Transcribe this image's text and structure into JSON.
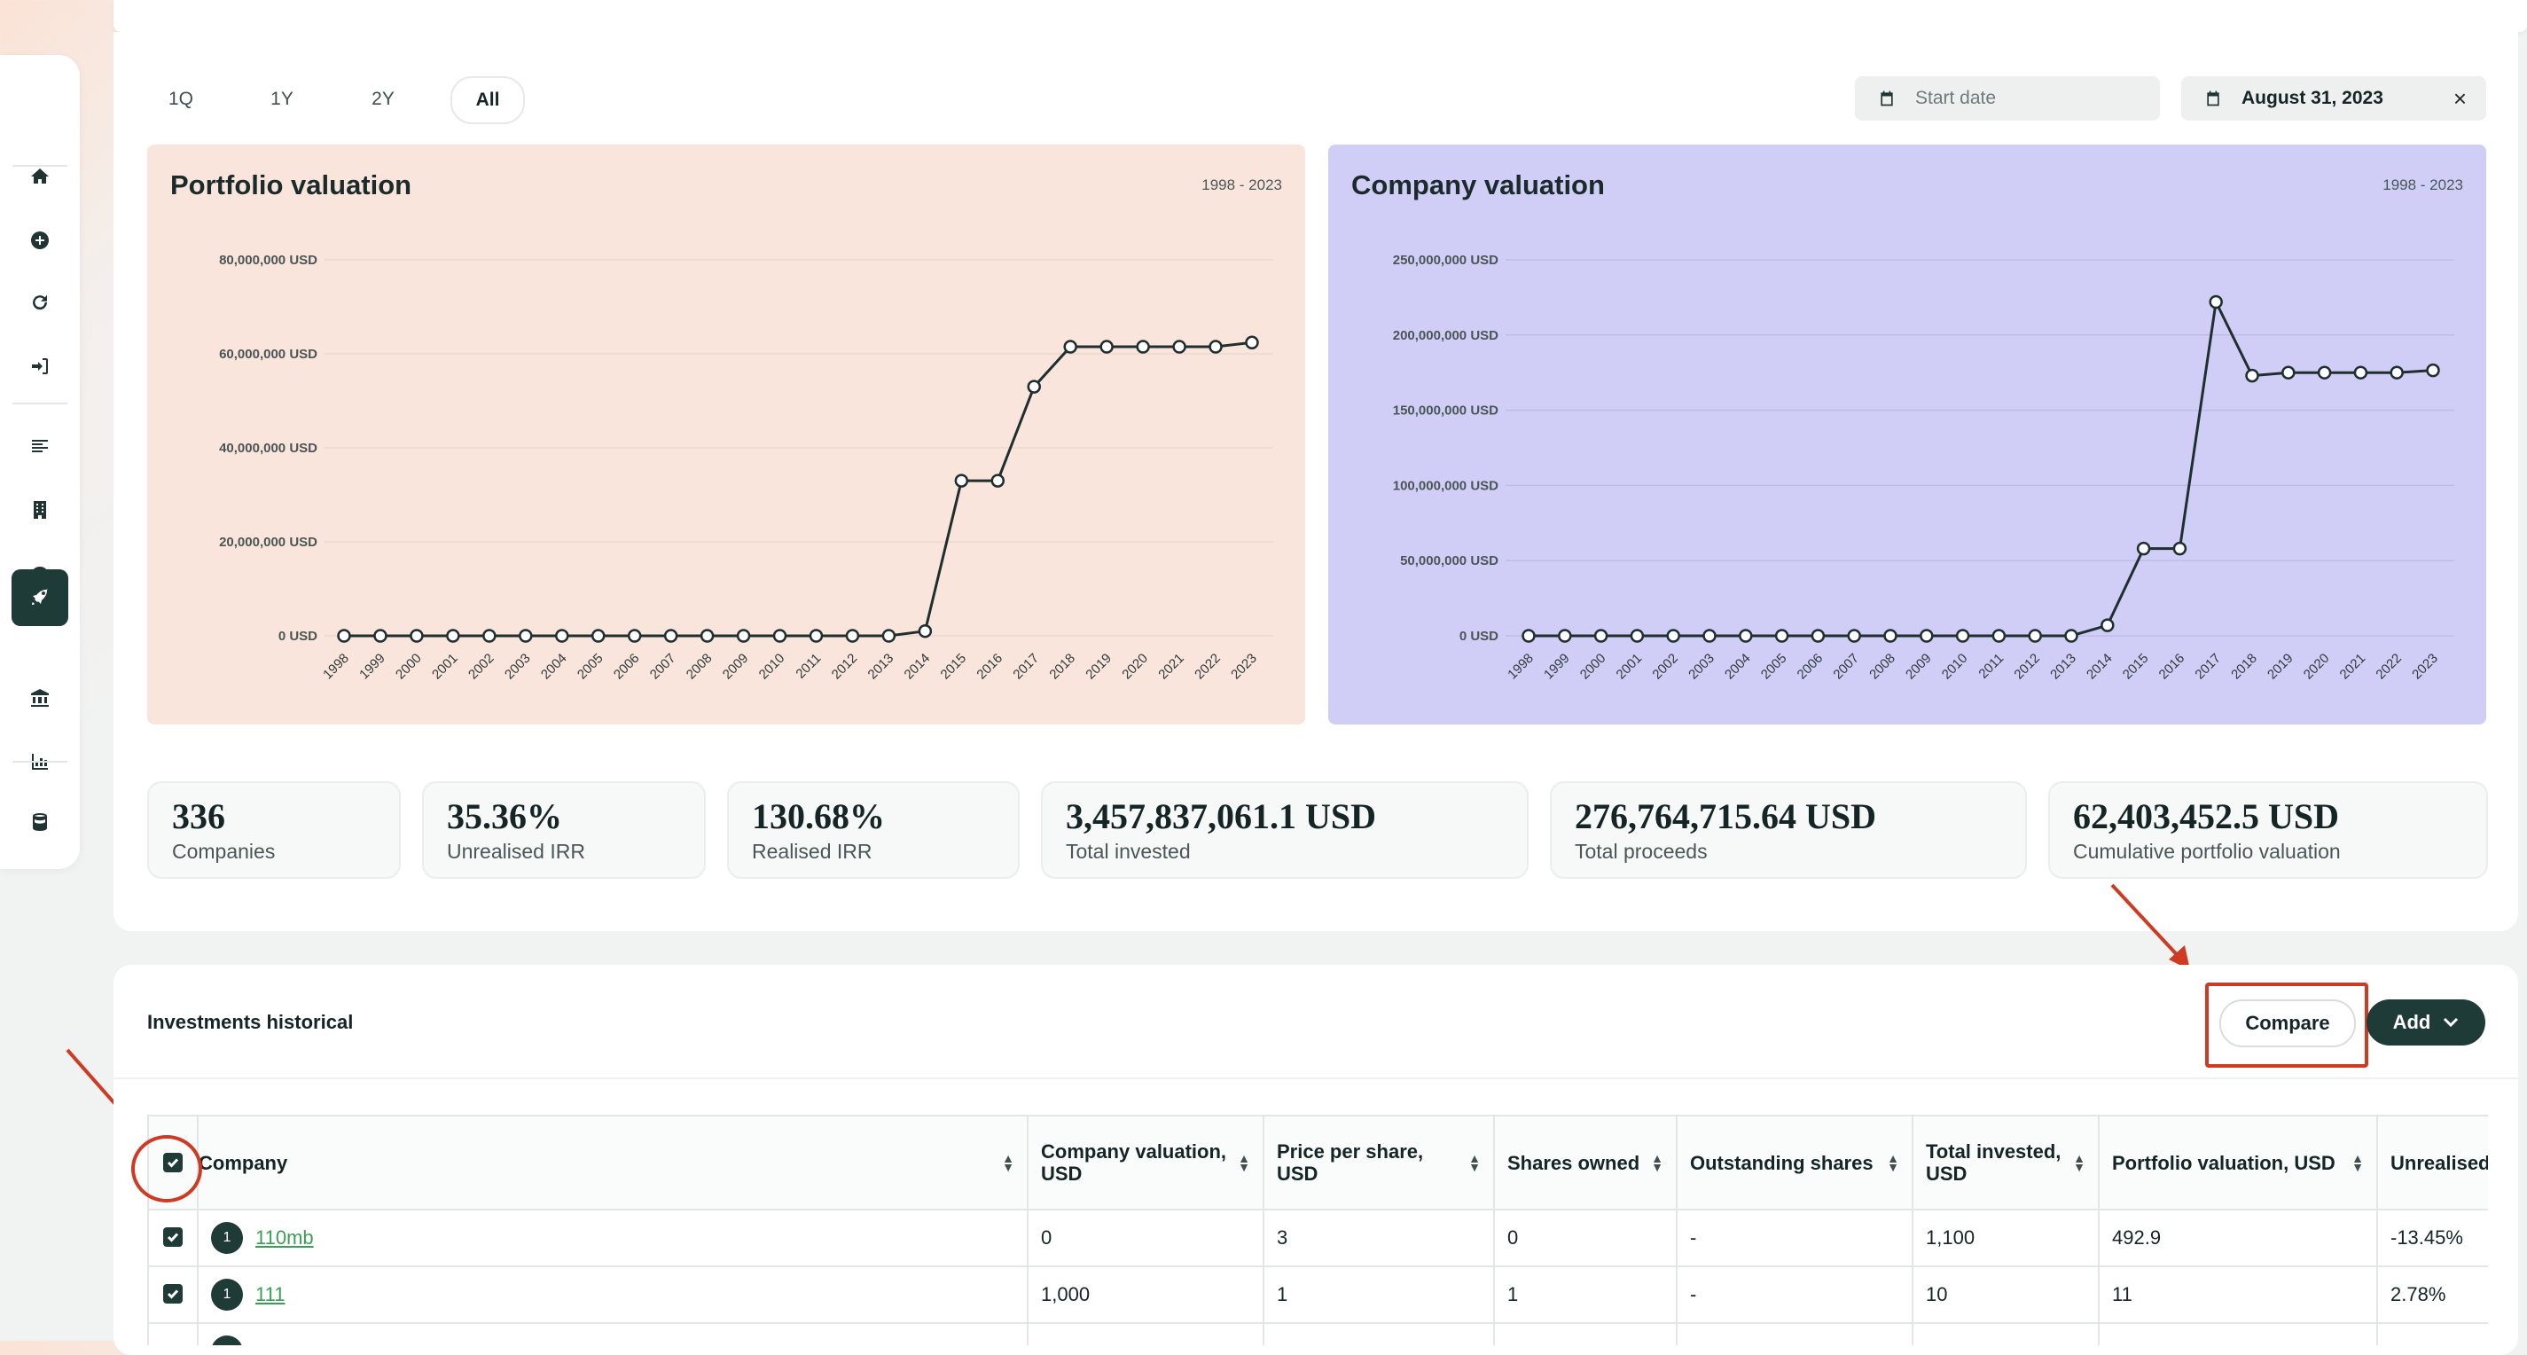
{
  "period_tabs": [
    "1Q",
    "1Y",
    "2Y",
    "All"
  ],
  "selected_period": "All",
  "date_filter": {
    "start_placeholder": "Start date",
    "end_value": "August 31, 2023",
    "clear_glyph": "×"
  },
  "sidebar": {
    "icons": [
      "home-icon",
      "plus-circle-icon",
      "refresh-icon",
      "sign-in-icon",
      "list-icon",
      "building-icon",
      "dashboard-icon",
      "rocket-icon",
      "bank-icon",
      "bar-chart-icon",
      "database-icon"
    ],
    "active": "rocket-icon"
  },
  "chart_data": [
    {
      "type": "line",
      "title": "Portfolio valuation",
      "subtitle": "1998 - 2023",
      "background": "#f9e5dc",
      "x": [
        "1998",
        "1999",
        "2000",
        "2001",
        "2002",
        "2003",
        "2004",
        "2005",
        "2006",
        "2007",
        "2008",
        "2009",
        "2010",
        "2011",
        "2012",
        "2013",
        "2014",
        "2015",
        "2016",
        "2017",
        "2018",
        "2019",
        "2020",
        "2021",
        "2022",
        "2023"
      ],
      "values": [
        0,
        0,
        0,
        0,
        0,
        0,
        0,
        0,
        0,
        0,
        0,
        0,
        0,
        0,
        0,
        0,
        1000000,
        33000000,
        33000000,
        53000000,
        61500000,
        61500000,
        61500000,
        61500000,
        61500000,
        62400000
      ],
      "yticks": [
        "80,000,000 USD",
        "60,000,000 USD",
        "40,000,000 USD",
        "20,000,000 USD",
        "0 USD"
      ],
      "ylim": [
        0,
        80000000
      ],
      "grid": true
    },
    {
      "type": "line",
      "title": "Company valuation",
      "subtitle": "1998 - 2023",
      "background": "#d0cef6",
      "x": [
        "1998",
        "1999",
        "2000",
        "2001",
        "2002",
        "2003",
        "2004",
        "2005",
        "2006",
        "2007",
        "2008",
        "2009",
        "2010",
        "2011",
        "2012",
        "2013",
        "2014",
        "2015",
        "2016",
        "2017",
        "2018",
        "2019",
        "2020",
        "2021",
        "2022",
        "2023"
      ],
      "values": [
        0,
        0,
        0,
        0,
        0,
        0,
        0,
        0,
        0,
        0,
        0,
        0,
        0,
        0,
        0,
        0,
        7000000,
        58000000,
        58000000,
        222000000,
        173000000,
        175000000,
        175000000,
        175000000,
        175000000,
        176500000
      ],
      "yticks": [
        "250,000,000 USD",
        "200,000,000 USD",
        "150,000,000 USD",
        "100,000,000 USD",
        "50,000,000 USD",
        "0 USD"
      ],
      "ylim": [
        0,
        250000000
      ],
      "grid": true
    }
  ],
  "stats": [
    {
      "value": "336",
      "label": "Companies"
    },
    {
      "value": "35.36%",
      "label": "Unrealised IRR"
    },
    {
      "value": "130.68%",
      "label": "Realised IRR"
    },
    {
      "value": "3,457,837,061.1 USD",
      "label": "Total invested"
    },
    {
      "value": "276,764,715.64 USD",
      "label": "Total proceeds"
    },
    {
      "value": "62,403,452.5 USD",
      "label": "Cumulative portfolio valuation"
    }
  ],
  "section": {
    "title": "Investments historical",
    "compare_label": "Compare",
    "add_label": "Add"
  },
  "table": {
    "headers": [
      "Company",
      "Company valuation, USD",
      "Price per share, USD",
      "Shares owned",
      "Outstanding shares",
      "Total invested, USD",
      "Portfolio valuation, USD",
      "Unrealised"
    ],
    "rows": [
      {
        "badge": "1",
        "company": "110mb",
        "cells": [
          "0",
          "3",
          "0",
          "-",
          "1,100",
          "492.9",
          "-13.45%"
        ]
      },
      {
        "badge": "1",
        "company": "111",
        "cells": [
          "1,000",
          "1",
          "1",
          "-",
          "10",
          "11",
          "2.78%"
        ]
      },
      {
        "badge": "",
        "company": "",
        "cells": [
          "",
          "",
          "",
          "",
          "",
          "",
          ""
        ]
      }
    ]
  }
}
